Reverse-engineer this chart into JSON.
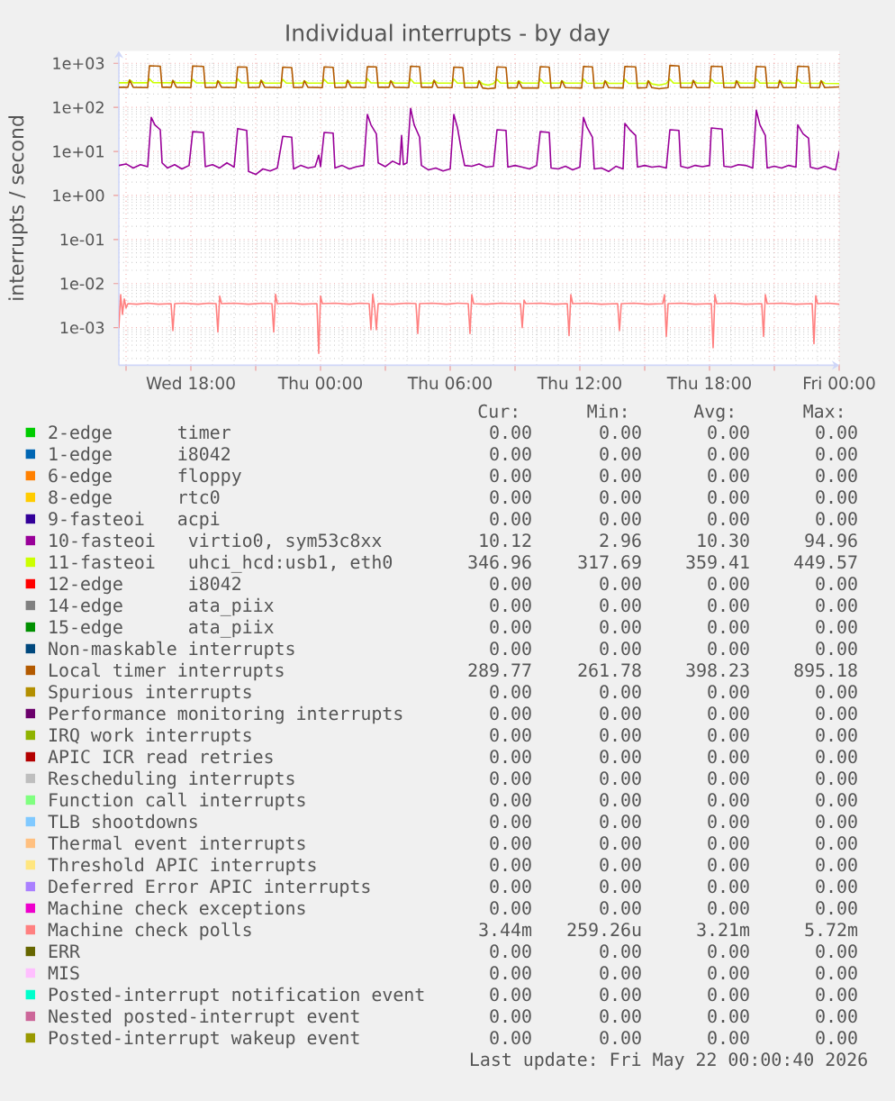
{
  "chart_data": {
    "type": "line",
    "title": "Individual interrupts - by day",
    "ylabel": "interrupts / second",
    "log": true,
    "grid": true,
    "legend": "bottom",
    "xlim": [
      "2026-05-20T14:40",
      "2026-05-22T00:00"
    ],
    "xticks": [
      {
        "value": "2026-05-20T15:00",
        "label": null
      },
      {
        "value": "2026-05-20T18:00",
        "label": "Wed 18:00"
      },
      {
        "value": "2026-05-20T21:00",
        "label": null
      },
      {
        "value": "2026-05-21T00:00",
        "label": "Thu 00:00"
      },
      {
        "value": "2026-05-21T03:00",
        "label": null
      },
      {
        "value": "2026-05-21T06:00",
        "label": "Thu 06:00"
      },
      {
        "value": "2026-05-21T09:00",
        "label": null
      },
      {
        "value": "2026-05-21T12:00",
        "label": "Thu 12:00"
      },
      {
        "value": "2026-05-21T15:00",
        "label": null
      },
      {
        "value": "2026-05-21T18:00",
        "label": "Thu 18:00"
      },
      {
        "value": "2026-05-21T21:00",
        "label": null
      },
      {
        "value": "2026-05-22T00:00",
        "label": "Fri 00:00"
      }
    ],
    "ylim": [
      0.00014,
      1900
    ],
    "yticks": [
      {
        "value": 0.001,
        "label": "1e-03"
      },
      {
        "value": 0.01,
        "label": "1e-02"
      },
      {
        "value": 0.1,
        "label": "1e-01"
      },
      {
        "value": 1,
        "label": "1e+00"
      },
      {
        "value": 10,
        "label": "1e+01"
      },
      {
        "value": 100,
        "label": "1e+02"
      },
      {
        "value": 1000,
        "label": "1e+03"
      }
    ],
    "series": [
      {
        "name": "2-edge      timer",
        "color": "#00cc00"
      },
      {
        "name": "1-edge      i8042",
        "color": "#0066b3"
      },
      {
        "name": "6-edge      floppy",
        "color": "#ff8000"
      },
      {
        "name": "8-edge      rtc0",
        "color": "#ffcc00"
      },
      {
        "name": "9-fasteoi   acpi",
        "color": "#330099"
      },
      {
        "name": "10-fasteoi   virtio0, sym53c8xx",
        "color": "#990099",
        "x": [
          "2026-05-20T14:40",
          "2026-05-20T15:00",
          "2026-05-20T15:20",
          "2026-05-20T15:40",
          "2026-05-20T16:00",
          "2026-05-20T16:10",
          "2026-05-20T16:20",
          "2026-05-20T16:35",
          "2026-05-20T16:40",
          "2026-05-20T16:55",
          "2026-05-20T17:15",
          "2026-05-20T17:35",
          "2026-05-20T17:55",
          "2026-05-20T18:05",
          "2026-05-20T18:35",
          "2026-05-20T18:40",
          "2026-05-20T19:00",
          "2026-05-20T19:20",
          "2026-05-20T19:40",
          "2026-05-20T20:00",
          "2026-05-20T20:10",
          "2026-05-20T20:35",
          "2026-05-20T20:40",
          "2026-05-20T21:00",
          "2026-05-20T21:20",
          "2026-05-20T21:40",
          "2026-05-20T22:00",
          "2026-05-20T22:15",
          "2026-05-20T22:40",
          "2026-05-20T22:45",
          "2026-05-20T23:05",
          "2026-05-20T23:25",
          "2026-05-20T23:45",
          "2026-05-20T23:55",
          "2026-05-21T00:00",
          "2026-05-21T00:10",
          "2026-05-21T00:35",
          "2026-05-21T00:40",
          "2026-05-21T01:00",
          "2026-05-21T01:20",
          "2026-05-21T01:40",
          "2026-05-21T02:00",
          "2026-05-21T02:10",
          "2026-05-21T02:20",
          "2026-05-21T02:35",
          "2026-05-21T02:40",
          "2026-05-21T03:00",
          "2026-05-21T03:20",
          "2026-05-21T03:40",
          "2026-05-21T03:45",
          "2026-05-21T03:50",
          "2026-05-21T04:00",
          "2026-05-21T04:10",
          "2026-05-21T04:20",
          "2026-05-21T04:35",
          "2026-05-21T04:40",
          "2026-05-21T05:00",
          "2026-05-21T05:20",
          "2026-05-21T05:40",
          "2026-05-21T06:00",
          "2026-05-21T06:10",
          "2026-05-21T06:20",
          "2026-05-21T06:30",
          "2026-05-21T06:40",
          "2026-05-21T07:00",
          "2026-05-21T07:20",
          "2026-05-21T07:40",
          "2026-05-21T08:00",
          "2026-05-21T08:10",
          "2026-05-21T08:35",
          "2026-05-21T08:40",
          "2026-05-21T09:00",
          "2026-05-21T09:20",
          "2026-05-21T09:40",
          "2026-05-21T10:00",
          "2026-05-21T10:10",
          "2026-05-21T10:35",
          "2026-05-21T10:40",
          "2026-05-21T11:00",
          "2026-05-21T11:20",
          "2026-05-21T11:40",
          "2026-05-21T12:00",
          "2026-05-21T12:10",
          "2026-05-21T12:20",
          "2026-05-21T12:35",
          "2026-05-21T12:40",
          "2026-05-21T13:00",
          "2026-05-21T13:20",
          "2026-05-21T13:40",
          "2026-05-21T14:00",
          "2026-05-21T14:05",
          "2026-05-21T14:20",
          "2026-05-21T14:35",
          "2026-05-21T14:40",
          "2026-05-21T15:00",
          "2026-05-21T15:20",
          "2026-05-21T15:40",
          "2026-05-21T16:00",
          "2026-05-21T16:10",
          "2026-05-21T16:35",
          "2026-05-21T16:40",
          "2026-05-21T17:00",
          "2026-05-21T17:20",
          "2026-05-21T17:40",
          "2026-05-21T18:00",
          "2026-05-21T18:05",
          "2026-05-21T18:35",
          "2026-05-21T18:40",
          "2026-05-21T19:00",
          "2026-05-21T19:20",
          "2026-05-21T19:40",
          "2026-05-21T20:00",
          "2026-05-21T20:10",
          "2026-05-21T20:20",
          "2026-05-21T20:35",
          "2026-05-21T20:40",
          "2026-05-21T21:00",
          "2026-05-21T21:20",
          "2026-05-21T21:40",
          "2026-05-21T22:00",
          "2026-05-21T22:05",
          "2026-05-21T22:20",
          "2026-05-21T22:35",
          "2026-05-21T22:40",
          "2026-05-21T23:00",
          "2026-05-21T23:20",
          "2026-05-21T23:40",
          "2026-05-21T23:50",
          "2026-05-22T00:00"
        ],
        "values": [
          4.8,
          5.2,
          4.2,
          5.0,
          4.5,
          59,
          40,
          31,
          5.5,
          4.2,
          5.0,
          4.0,
          4.8,
          28,
          27,
          4.5,
          5.0,
          4.2,
          5.5,
          4.4,
          33,
          30,
          3.5,
          3.0,
          4.0,
          3.6,
          4.2,
          22,
          21,
          4.0,
          4.8,
          4.2,
          4.5,
          8.2,
          4.5,
          27,
          26,
          4.2,
          4.8,
          4.0,
          4.5,
          4.8,
          69,
          40,
          25,
          5.5,
          4.5,
          6.0,
          5.0,
          23,
          5.0,
          5.5,
          95,
          40,
          21,
          4.8,
          3.8,
          4.2,
          3.6,
          4.0,
          69,
          35,
          12,
          4.8,
          4.6,
          5.2,
          4.4,
          4.6,
          31,
          30,
          4.4,
          4.8,
          4.4,
          4.0,
          4.8,
          28,
          27,
          4.2,
          4.0,
          4.6,
          3.8,
          4.4,
          59,
          35,
          21,
          4.0,
          4.2,
          3.5,
          4.6,
          4.0,
          43,
          30,
          23,
          4.4,
          4.8,
          4.4,
          4.6,
          4.2,
          31,
          30,
          4.6,
          4.2,
          4.8,
          4.5,
          4.8,
          34,
          32,
          4.6,
          4.4,
          5.0,
          4.8,
          4.2,
          86,
          40,
          23,
          4.2,
          4.6,
          4.2,
          4.8,
          4.4,
          40,
          25,
          20,
          4.4,
          4.0,
          4.6,
          4.0,
          3.8,
          10
        ]
      },
      {
        "name": "11-fasteoi   uhci_hcd:usb1, eth0",
        "color": "#ccff00",
        "x": [
          "2026-05-20T14:40",
          "2026-05-20T15:05",
          "2026-05-20T15:10",
          "2026-05-20T15:20",
          "2026-05-20T16:00",
          "2026-05-20T16:05",
          "2026-05-20T16:15",
          "2026-05-20T17:05",
          "2026-05-20T17:10",
          "2026-05-20T17:20",
          "2026-05-20T18:00",
          "2026-05-20T18:05",
          "2026-05-20T18:15",
          "2026-05-20T19:10",
          "2026-05-20T19:15",
          "2026-05-20T19:25",
          "2026-05-20T20:05",
          "2026-05-20T20:10",
          "2026-05-20T20:20",
          "2026-05-20T21:10",
          "2026-05-20T21:15",
          "2026-05-20T21:25",
          "2026-05-20T22:10",
          "2026-05-20T22:15",
          "2026-05-20T22:25",
          "2026-05-20T23:10",
          "2026-05-20T23:15",
          "2026-05-20T23:25",
          "2026-05-21T00:05",
          "2026-05-21T00:10",
          "2026-05-21T00:20",
          "2026-05-21T01:10",
          "2026-05-21T01:15",
          "2026-05-21T01:25",
          "2026-05-21T02:05",
          "2026-05-21T02:10",
          "2026-05-21T02:20",
          "2026-05-21T03:10",
          "2026-05-21T03:15",
          "2026-05-21T03:25",
          "2026-05-21T04:05",
          "2026-05-21T04:10",
          "2026-05-21T04:20",
          "2026-05-21T05:10",
          "2026-05-21T05:15",
          "2026-05-21T05:25",
          "2026-05-21T06:05",
          "2026-05-21T06:10",
          "2026-05-21T06:20",
          "2026-05-21T07:15",
          "2026-05-21T07:20",
          "2026-05-21T07:30",
          "2026-05-21T07:45",
          "2026-05-21T08:00",
          "2026-05-21T08:10",
          "2026-05-21T08:20",
          "2026-05-21T09:05",
          "2026-05-21T09:10",
          "2026-05-21T09:20",
          "2026-05-21T10:05",
          "2026-05-21T10:10",
          "2026-05-21T10:20",
          "2026-05-21T11:05",
          "2026-05-21T11:10",
          "2026-05-21T11:20",
          "2026-05-21T12:05",
          "2026-05-21T12:10",
          "2026-05-21T12:20",
          "2026-05-21T13:05",
          "2026-05-21T13:10",
          "2026-05-21T13:20",
          "2026-05-21T14:00",
          "2026-05-21T14:05",
          "2026-05-21T14:15",
          "2026-05-21T15:05",
          "2026-05-21T15:10",
          "2026-05-21T15:20",
          "2026-05-21T15:40",
          "2026-05-21T16:00",
          "2026-05-21T16:10",
          "2026-05-21T16:20",
          "2026-05-21T17:10",
          "2026-05-21T17:15",
          "2026-05-21T17:25",
          "2026-05-21T18:00",
          "2026-05-21T18:05",
          "2026-05-21T18:15",
          "2026-05-21T19:10",
          "2026-05-21T19:15",
          "2026-05-21T19:25",
          "2026-05-21T20:05",
          "2026-05-21T20:10",
          "2026-05-21T20:20",
          "2026-05-21T21:10",
          "2026-05-21T21:15",
          "2026-05-21T21:25",
          "2026-05-21T22:00",
          "2026-05-21T22:05",
          "2026-05-21T22:15",
          "2026-05-21T23:05",
          "2026-05-21T23:10",
          "2026-05-21T23:20",
          "2026-05-22T00:00"
        ],
        "values": [
          360,
          360,
          420,
          360,
          360,
          440,
          365,
          360,
          400,
          360,
          360,
          430,
          360,
          355,
          400,
          355,
          360,
          440,
          360,
          355,
          410,
          355,
          355,
          430,
          355,
          355,
          400,
          355,
          355,
          430,
          355,
          355,
          410,
          355,
          360,
          449,
          360,
          355,
          400,
          355,
          355,
          440,
          355,
          355,
          410,
          355,
          355,
          440,
          355,
          355,
          400,
          340,
          320,
          345,
          430,
          355,
          355,
          400,
          355,
          355,
          440,
          355,
          355,
          400,
          355,
          355,
          440,
          355,
          350,
          400,
          350,
          350,
          430,
          350,
          350,
          400,
          340,
          320,
          345,
          440,
          355,
          355,
          400,
          355,
          355,
          430,
          355,
          355,
          400,
          355,
          355,
          440,
          355,
          355,
          400,
          355,
          355,
          430,
          355,
          350,
          400,
          350,
          347
        ]
      },
      {
        "name": "12-edge      i8042",
        "color": "#ff0000"
      },
      {
        "name": "14-edge      ata_piix",
        "color": "#808080"
      },
      {
        "name": "15-edge      ata_piix",
        "color": "#008f00"
      },
      {
        "name": "Non-maskable interrupts",
        "color": "#00487d"
      },
      {
        "name": "Local timer interrupts",
        "color": "#b35a00",
        "x": [
          "2026-05-20T14:40",
          "2026-05-20T15:05",
          "2026-05-20T15:10",
          "2026-05-20T15:20",
          "2026-05-20T16:00",
          "2026-05-20T16:05",
          "2026-05-20T16:35",
          "2026-05-20T16:40",
          "2026-05-20T17:05",
          "2026-05-20T17:10",
          "2026-05-20T17:20",
          "2026-05-20T18:00",
          "2026-05-20T18:05",
          "2026-05-20T18:35",
          "2026-05-20T18:40",
          "2026-05-20T19:10",
          "2026-05-20T19:15",
          "2026-05-20T19:25",
          "2026-05-20T20:05",
          "2026-05-20T20:10",
          "2026-05-20T20:35",
          "2026-05-20T20:40",
          "2026-05-20T21:10",
          "2026-05-20T21:15",
          "2026-05-20T21:25",
          "2026-05-20T22:10",
          "2026-05-20T22:15",
          "2026-05-20T22:40",
          "2026-05-20T22:45",
          "2026-05-20T23:10",
          "2026-05-20T23:15",
          "2026-05-20T23:25",
          "2026-05-21T00:05",
          "2026-05-21T00:10",
          "2026-05-21T00:35",
          "2026-05-21T00:40",
          "2026-05-21T01:10",
          "2026-05-21T01:15",
          "2026-05-21T01:25",
          "2026-05-21T02:05",
          "2026-05-21T02:10",
          "2026-05-21T02:35",
          "2026-05-21T02:40",
          "2026-05-21T03:10",
          "2026-05-21T03:15",
          "2026-05-21T03:25",
          "2026-05-21T04:05",
          "2026-05-21T04:10",
          "2026-05-21T04:35",
          "2026-05-21T04:40",
          "2026-05-21T05:10",
          "2026-05-21T05:15",
          "2026-05-21T05:25",
          "2026-05-21T06:05",
          "2026-05-21T06:10",
          "2026-05-21T06:35",
          "2026-05-21T06:40",
          "2026-05-21T07:15",
          "2026-05-21T07:20",
          "2026-05-21T07:30",
          "2026-05-21T07:45",
          "2026-05-21T08:05",
          "2026-05-21T08:10",
          "2026-05-21T08:35",
          "2026-05-21T08:40",
          "2026-05-21T09:05",
          "2026-05-21T09:10",
          "2026-05-21T09:20",
          "2026-05-21T10:05",
          "2026-05-21T10:10",
          "2026-05-21T10:35",
          "2026-05-21T10:40",
          "2026-05-21T11:05",
          "2026-05-21T11:10",
          "2026-05-21T11:20",
          "2026-05-21T12:05",
          "2026-05-21T12:10",
          "2026-05-21T12:35",
          "2026-05-21T12:40",
          "2026-05-21T13:05",
          "2026-05-21T13:10",
          "2026-05-21T13:20",
          "2026-05-21T14:00",
          "2026-05-21T14:05",
          "2026-05-21T14:35",
          "2026-05-21T14:40",
          "2026-05-21T15:05",
          "2026-05-21T15:10",
          "2026-05-21T15:20",
          "2026-05-21T15:40",
          "2026-05-21T16:05",
          "2026-05-21T16:10",
          "2026-05-21T16:35",
          "2026-05-21T16:40",
          "2026-05-21T17:10",
          "2026-05-21T17:15",
          "2026-05-21T17:25",
          "2026-05-21T18:00",
          "2026-05-21T18:05",
          "2026-05-21T18:35",
          "2026-05-21T18:40",
          "2026-05-21T19:10",
          "2026-05-21T19:15",
          "2026-05-21T19:25",
          "2026-05-21T20:05",
          "2026-05-21T20:10",
          "2026-05-21T20:35",
          "2026-05-21T20:40",
          "2026-05-21T21:10",
          "2026-05-21T21:15",
          "2026-05-21T21:25",
          "2026-05-21T22:00",
          "2026-05-21T22:05",
          "2026-05-21T22:35",
          "2026-05-21T22:40",
          "2026-05-21T23:05",
          "2026-05-21T23:10",
          "2026-05-21T23:20",
          "2026-05-22T00:00"
        ],
        "values": [
          285,
          285,
          415,
          285,
          280,
          880,
          860,
          285,
          285,
          410,
          285,
          280,
          870,
          850,
          280,
          285,
          400,
          285,
          280,
          830,
          820,
          280,
          285,
          410,
          285,
          280,
          820,
          800,
          280,
          285,
          400,
          285,
          280,
          830,
          810,
          280,
          285,
          410,
          285,
          280,
          840,
          830,
          285,
          285,
          400,
          285,
          280,
          860,
          840,
          285,
          285,
          410,
          280,
          280,
          820,
          800,
          280,
          280,
          400,
          275,
          265,
          275,
          830,
          810,
          275,
          280,
          390,
          275,
          275,
          840,
          820,
          275,
          280,
          400,
          280,
          275,
          850,
          830,
          275,
          280,
          400,
          280,
          275,
          850,
          830,
          275,
          280,
          400,
          280,
          265,
          280,
          895,
          870,
          280,
          280,
          410,
          280,
          280,
          860,
          840,
          280,
          280,
          400,
          280,
          280,
          850,
          830,
          280,
          280,
          410,
          280,
          280,
          860,
          840,
          280,
          280,
          400,
          280,
          290
        ]
      },
      {
        "name": "Spurious interrupts",
        "color": "#b38f00"
      },
      {
        "name": "Performance monitoring interrupts",
        "color": "#6b006b"
      },
      {
        "name": "IRQ work interrupts",
        "color": "#8fb300"
      },
      {
        "name": "APIC ICR read retries",
        "color": "#b30000"
      },
      {
        "name": "Rescheduling interrupts",
        "color": "#bebebe"
      },
      {
        "name": "Function call interrupts",
        "color": "#80ff80"
      },
      {
        "name": "TLB shootdowns",
        "color": "#80c9ff"
      },
      {
        "name": "Thermal event interrupts",
        "color": "#ffc080"
      },
      {
        "name": "Threshold APIC interrupts",
        "color": "#ffe680"
      },
      {
        "name": "Deferred Error APIC interrupts",
        "color": "#aa80ff"
      },
      {
        "name": "Machine check exceptions",
        "color": "#ee00cc"
      },
      {
        "name": "Machine check polls",
        "color": "#ff8080",
        "x": [
          "2026-05-20T14:40",
          "2026-05-20T14:45",
          "2026-05-20T14:50",
          "2026-05-20T14:55",
          "2026-05-20T15:00",
          "2026-05-20T15:05",
          "2026-05-20T15:30",
          "2026-05-20T16:00",
          "2026-05-20T16:30",
          "2026-05-20T17:05",
          "2026-05-20T17:10",
          "2026-05-20T17:15",
          "2026-05-20T17:40",
          "2026-05-20T18:20",
          "2026-05-20T18:50",
          "2026-05-20T19:10",
          "2026-05-20T19:15",
          "2026-05-20T19:20",
          "2026-05-20T19:25",
          "2026-05-20T20:00",
          "2026-05-20T20:40",
          "2026-05-20T21:20",
          "2026-05-20T21:45",
          "2026-05-20T21:50",
          "2026-05-20T21:55",
          "2026-05-20T22:00",
          "2026-05-20T22:40",
          "2026-05-20T23:10",
          "2026-05-20T23:50",
          "2026-05-20T23:55",
          "2026-05-21T00:00",
          "2026-05-21T00:05",
          "2026-05-21T00:40",
          "2026-05-21T01:20",
          "2026-05-21T01:50",
          "2026-05-21T02:15",
          "2026-05-21T02:20",
          "2026-05-21T02:25",
          "2026-05-21T02:30",
          "2026-05-21T02:35",
          "2026-05-21T02:40",
          "2026-05-21T03:20",
          "2026-05-21T04:00",
          "2026-05-21T04:25",
          "2026-05-21T04:30",
          "2026-05-21T04:35",
          "2026-05-21T05:10",
          "2026-05-21T05:50",
          "2026-05-21T06:20",
          "2026-05-21T06:50",
          "2026-05-21T06:55",
          "2026-05-21T07:00",
          "2026-05-21T07:05",
          "2026-05-21T07:40",
          "2026-05-21T08:20",
          "2026-05-21T08:50",
          "2026-05-21T09:15",
          "2026-05-21T09:20",
          "2026-05-21T09:25",
          "2026-05-21T09:30",
          "2026-05-21T10:10",
          "2026-05-21T10:50",
          "2026-05-21T11:25",
          "2026-05-21T11:30",
          "2026-05-21T11:35",
          "2026-05-21T11:40",
          "2026-05-21T12:20",
          "2026-05-21T13:00",
          "2026-05-21T13:45",
          "2026-05-21T13:50",
          "2026-05-21T13:55",
          "2026-05-21T14:30",
          "2026-05-21T15:10",
          "2026-05-21T15:50",
          "2026-05-21T15:55",
          "2026-05-21T16:00",
          "2026-05-21T16:05",
          "2026-05-21T16:40",
          "2026-05-21T17:20",
          "2026-05-21T18:05",
          "2026-05-21T18:10",
          "2026-05-21T18:15",
          "2026-05-21T18:20",
          "2026-05-21T19:00",
          "2026-05-21T19:40",
          "2026-05-21T20:25",
          "2026-05-21T20:30",
          "2026-05-21T20:35",
          "2026-05-21T20:40",
          "2026-05-21T21:20",
          "2026-05-21T22:00",
          "2026-05-21T22:45",
          "2026-05-21T22:50",
          "2026-05-21T22:55",
          "2026-05-21T23:00",
          "2026-05-21T23:30",
          "2026-05-22T00:00"
        ],
        "values": [
          0.001,
          0.0056,
          0.002,
          0.0045,
          0.0028,
          0.0035,
          0.0034,
          0.0036,
          0.0034,
          0.0035,
          0.00086,
          0.0035,
          0.0036,
          0.0034,
          0.0036,
          0.0035,
          0.0008,
          0.0052,
          0.0035,
          0.0036,
          0.0034,
          0.0036,
          0.0035,
          0.0008,
          0.0057,
          0.0035,
          0.0036,
          0.0034,
          0.0035,
          0.00026,
          0.0052,
          0.0035,
          0.0036,
          0.0034,
          0.0036,
          0.0035,
          0.0009,
          0.0057,
          0.003,
          0.0009,
          0.0035,
          0.0034,
          0.0036,
          0.0035,
          0.00073,
          0.0035,
          0.0036,
          0.0034,
          0.0036,
          0.0035,
          0.00073,
          0.0056,
          0.0035,
          0.0034,
          0.0036,
          0.0035,
          0.0035,
          0.001,
          0.0042,
          0.0035,
          0.0036,
          0.0034,
          0.0035,
          0.00066,
          0.0056,
          0.0035,
          0.0036,
          0.0034,
          0.0035,
          0.00086,
          0.0035,
          0.0036,
          0.0034,
          0.0035,
          0.0056,
          0.00063,
          0.0035,
          0.0036,
          0.0034,
          0.0035,
          0.00035,
          0.0056,
          0.0035,
          0.0036,
          0.0034,
          0.0035,
          0.00063,
          0.0056,
          0.0035,
          0.0036,
          0.0034,
          0.0035,
          0.00043,
          0.0053,
          0.0035,
          0.0036,
          0.0034
        ]
      },
      {
        "name": "ERR",
        "color": "#666600"
      },
      {
        "name": "MIS",
        "color": "#ffbfff"
      },
      {
        "name": "Posted-interrupt notification event",
        "color": "#00ffcc"
      },
      {
        "name": "Nested posted-interrupt event",
        "color": "#cc6699"
      },
      {
        "name": "Posted-interrupt wakeup event",
        "color": "#999900"
      }
    ],
    "annotations": [
      "Cur:",
      "Min:",
      "Avg:",
      "Max:",
      "0.00",
      "0.00",
      "0.00",
      "0.00",
      "0.00",
      "0.00",
      "0.00",
      "0.00",
      "0.00",
      "0.00",
      "0.00",
      "0.00",
      "0.00",
      "0.00",
      "0.00",
      "0.00",
      "0.00",
      "0.00",
      "0.00",
      "0.00",
      "10.12",
      "2.96",
      "10.30",
      "94.96",
      "346.96",
      "317.69",
      "359.41",
      "449.57",
      "0.00",
      "0.00",
      "0.00",
      "0.00",
      "0.00",
      "0.00",
      "0.00",
      "0.00",
      "0.00",
      "0.00",
      "0.00",
      "0.00",
      "0.00",
      "0.00",
      "0.00",
      "0.00",
      "289.77",
      "261.78",
      "398.23",
      "895.18",
      "0.00",
      "0.00",
      "0.00",
      "0.00",
      "0.00",
      "0.00",
      "0.00",
      "0.00",
      "0.00",
      "0.00",
      "0.00",
      "0.00",
      "0.00",
      "0.00",
      "0.00",
      "0.00",
      "0.00",
      "0.00",
      "0.00",
      "0.00",
      "0.00",
      "0.00",
      "0.00",
      "0.00",
      "0.00",
      "0.00",
      "0.00",
      "0.00",
      "0.00",
      "0.00",
      "0.00",
      "0.00",
      "0.00",
      "0.00",
      "0.00",
      "0.00",
      "0.00",
      "0.00",
      "0.00",
      "0.00",
      "0.00",
      "0.00",
      "0.00",
      "0.00",
      "3.44m",
      "259.26u",
      "3.21m",
      "5.72m",
      "0.00",
      "0.00",
      "0.00",
      "0.00",
      "0.00",
      "0.00",
      "0.00",
      "0.00",
      "0.00",
      "0.00",
      "0.00",
      "0.00",
      "0.00",
      "0.00",
      "0.00",
      "0.00",
      "0.00",
      "0.00",
      "0.00",
      "0.00",
      "Last update: Fri May 22 00:00:40 2026"
    ]
  }
}
